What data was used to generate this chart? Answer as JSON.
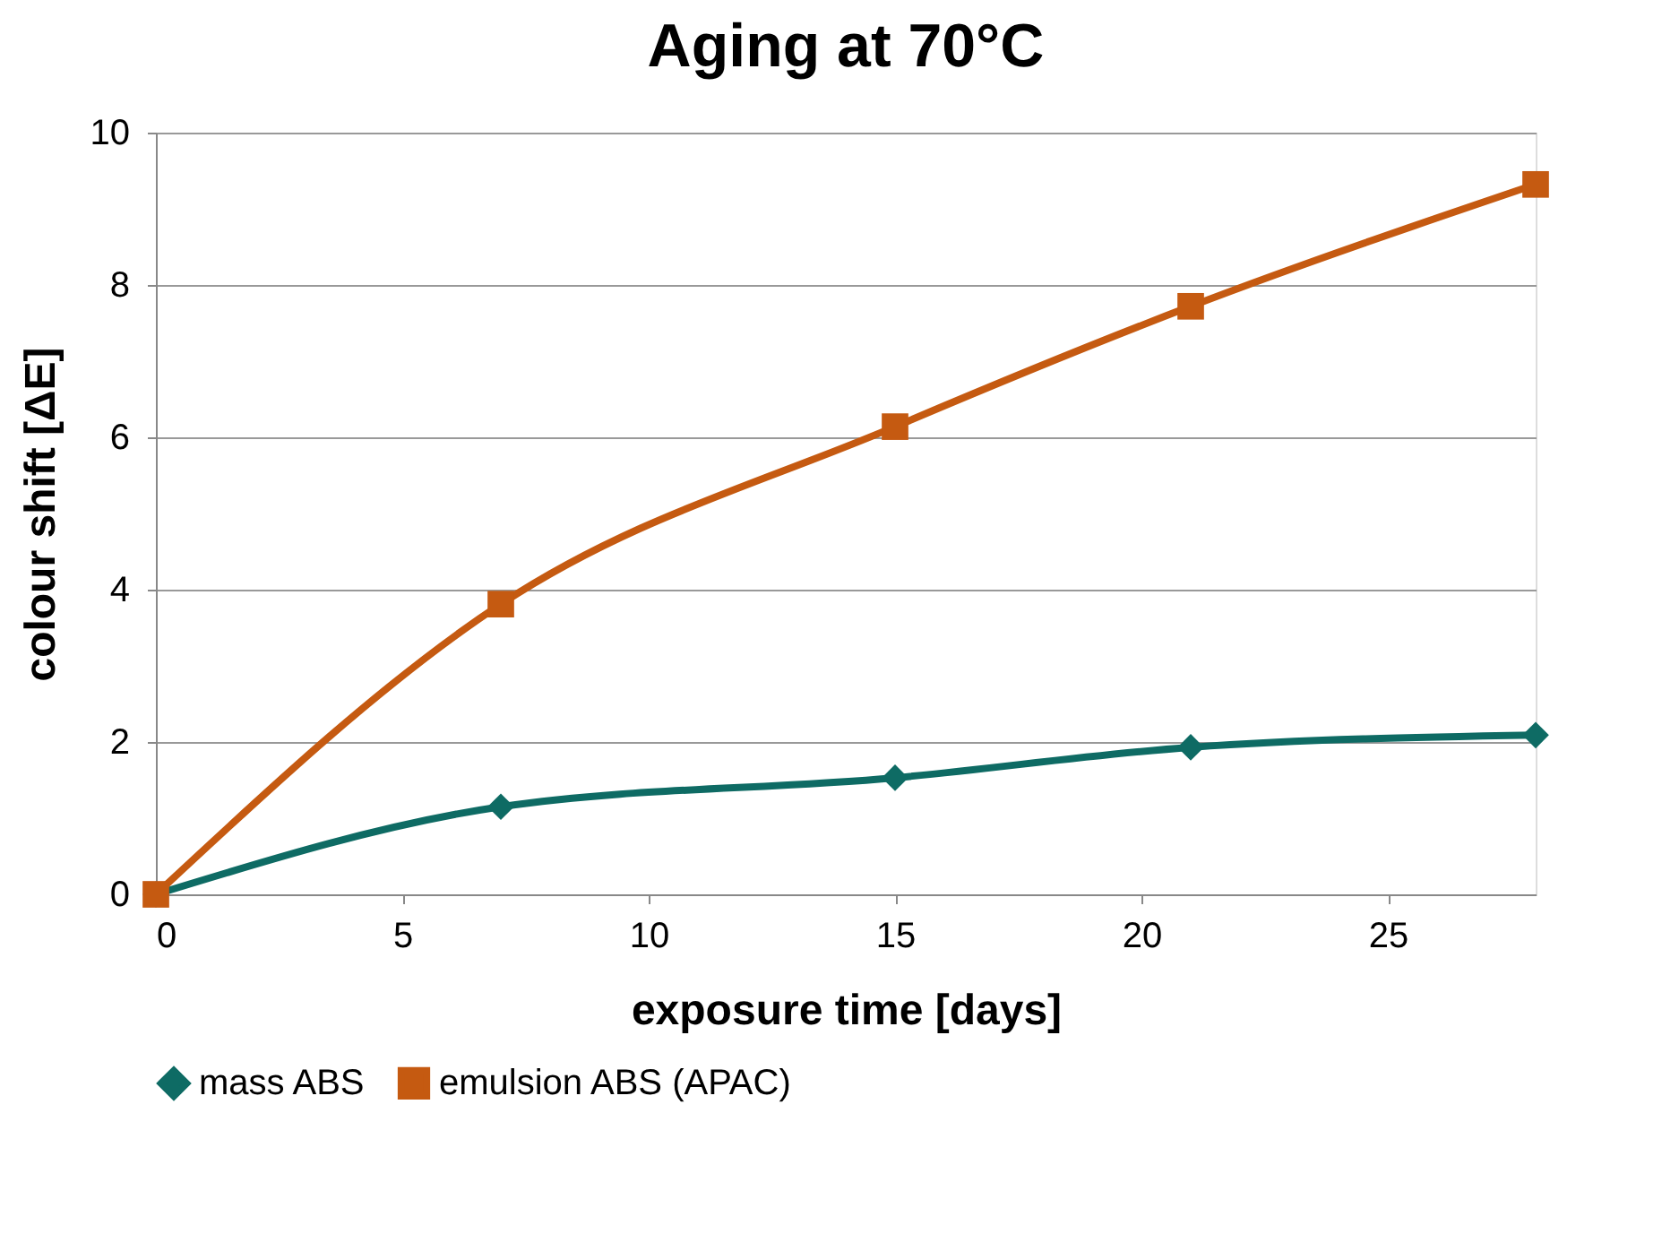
{
  "chart_data": {
    "type": "line",
    "title": "Aging at 70°C",
    "xlabel": "exposure time [days]",
    "ylabel": "colour shift [ΔE]",
    "x": [
      0,
      7,
      15,
      21,
      28
    ],
    "series": [
      {
        "name": "mass ABS",
        "color": "#0e6b64",
        "marker": "diamond",
        "values": [
          0,
          1.15,
          1.53,
          1.93,
          2.09
        ]
      },
      {
        "name": "emulsion ABS (APAC)",
        "color": "#c55a11",
        "marker": "square",
        "values": [
          0,
          3.81,
          6.14,
          7.72,
          9.32
        ]
      }
    ],
    "xlim": [
      0,
      28
    ],
    "xticks": [
      0,
      5,
      10,
      15,
      20,
      25
    ],
    "ylim": [
      0,
      10
    ],
    "yticks": [
      0,
      2,
      4,
      6,
      8,
      10
    ],
    "grid": "y",
    "legend": "bottom",
    "line_style": "solid"
  }
}
